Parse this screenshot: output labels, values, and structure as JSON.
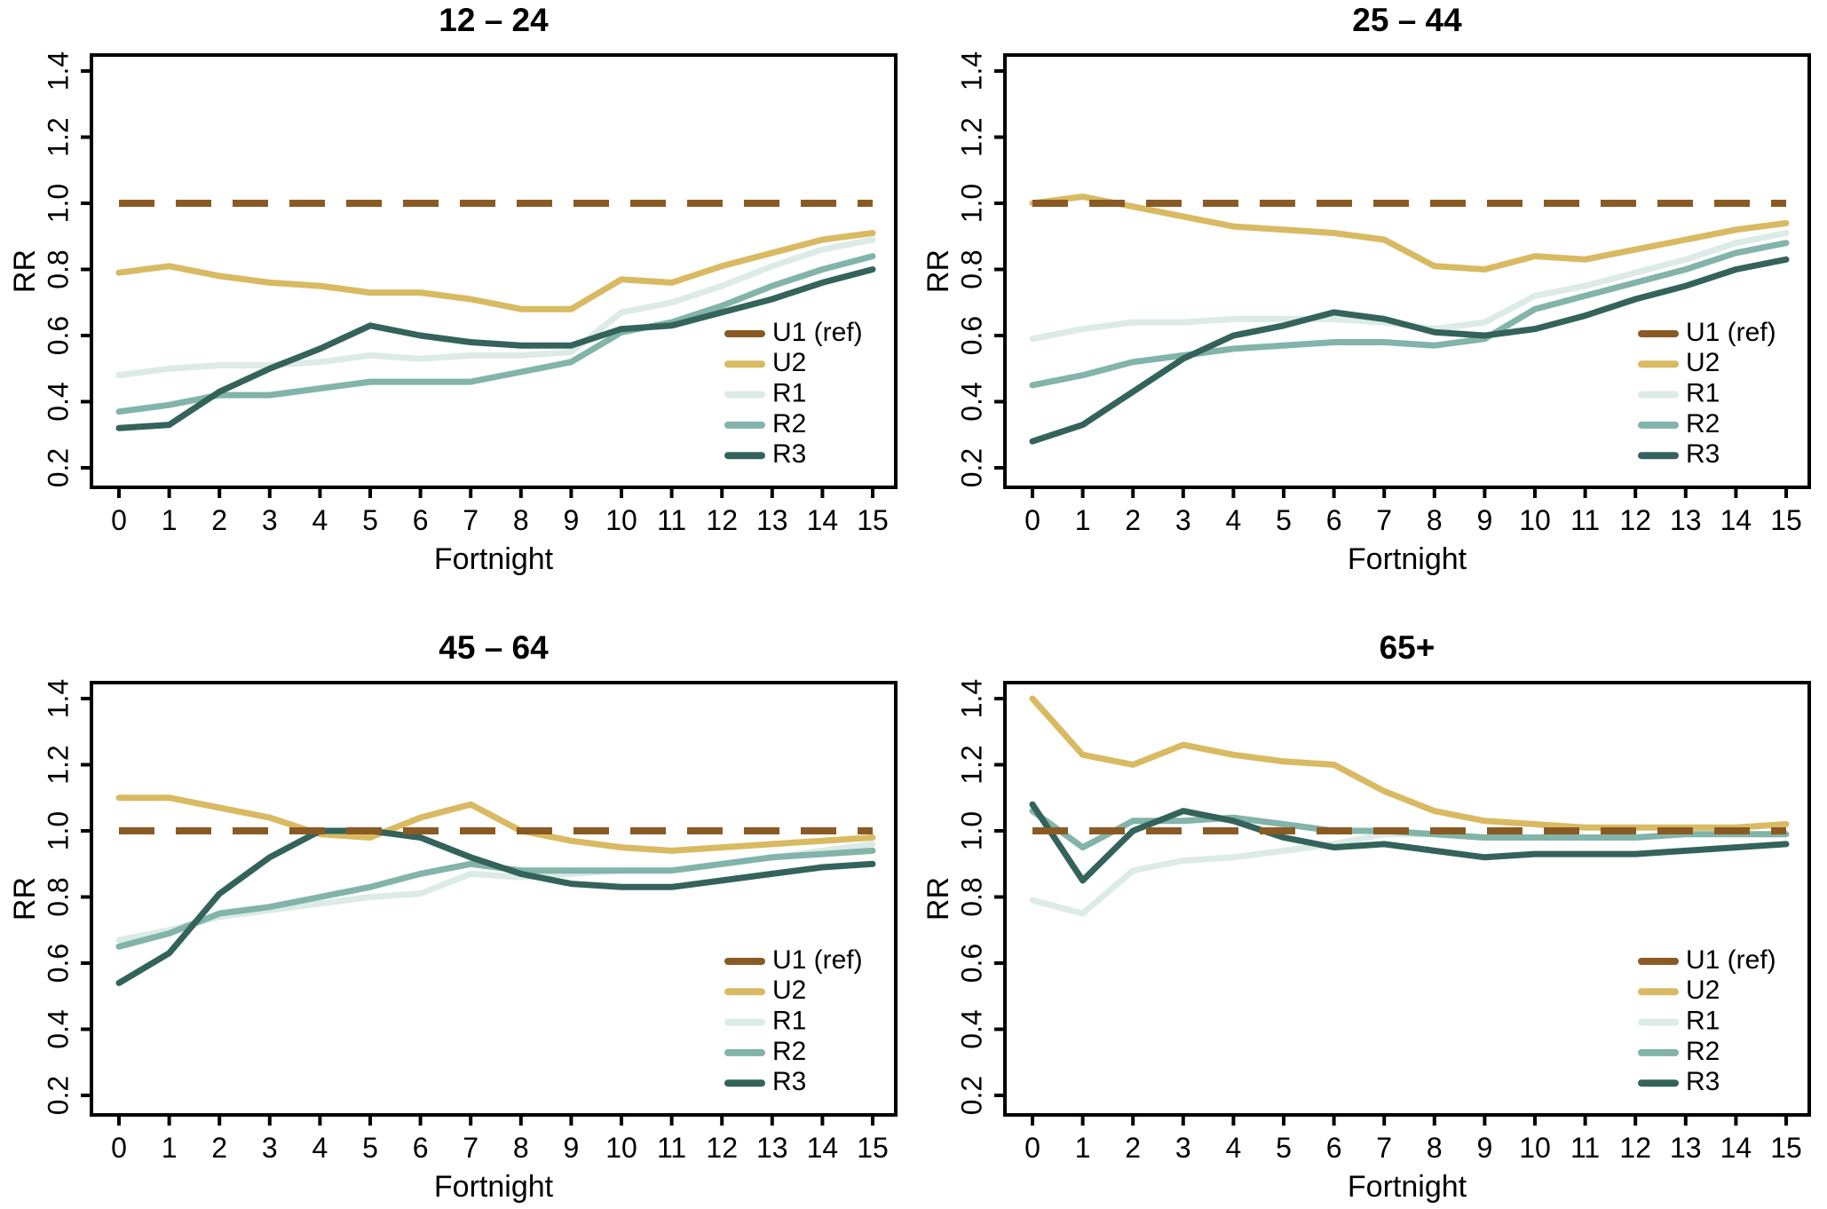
{
  "figure": {
    "background": "#ffffff",
    "text_color": "#000000"
  },
  "chart_data": [
    {
      "type": "line",
      "title": "12 – 24",
      "xlabel": "Fortnight",
      "ylabel": "RR",
      "x": [
        0,
        1,
        2,
        3,
        4,
        5,
        6,
        7,
        8,
        9,
        10,
        11,
        12,
        13,
        14,
        15
      ],
      "xticks": [
        0,
        1,
        2,
        3,
        4,
        5,
        6,
        7,
        8,
        9,
        10,
        11,
        12,
        13,
        14,
        15
      ],
      "yticks": [
        0.2,
        0.4,
        0.6,
        0.8,
        1.0,
        1.2,
        1.4
      ],
      "ylim": [
        0.2,
        1.4
      ],
      "grid": false,
      "legend_position": "lower right",
      "series": [
        {
          "name": "U1 (ref)",
          "color": "#8a5a24",
          "style": "dashed",
          "values": [
            1.0,
            1.0,
            1.0,
            1.0,
            1.0,
            1.0,
            1.0,
            1.0,
            1.0,
            1.0,
            1.0,
            1.0,
            1.0,
            1.0,
            1.0,
            1.0
          ]
        },
        {
          "name": "U2",
          "color": "#d9ba62",
          "style": "solid",
          "values": [
            0.79,
            0.81,
            0.78,
            0.76,
            0.75,
            0.73,
            0.73,
            0.71,
            0.68,
            0.68,
            0.77,
            0.76,
            0.81,
            0.85,
            0.89,
            0.91
          ]
        },
        {
          "name": "R1",
          "color": "#dcebe6",
          "style": "solid",
          "values": [
            0.48,
            0.5,
            0.51,
            0.51,
            0.52,
            0.54,
            0.53,
            0.54,
            0.54,
            0.55,
            0.67,
            0.7,
            0.75,
            0.81,
            0.86,
            0.89
          ]
        },
        {
          "name": "R2",
          "color": "#82b4a9",
          "style": "solid",
          "values": [
            0.37,
            0.39,
            0.42,
            0.42,
            0.44,
            0.46,
            0.46,
            0.46,
            0.49,
            0.52,
            0.61,
            0.64,
            0.69,
            0.75,
            0.8,
            0.84
          ]
        },
        {
          "name": "R3",
          "color": "#33635a",
          "style": "solid",
          "values": [
            0.32,
            0.33,
            0.43,
            0.5,
            0.56,
            0.63,
            0.6,
            0.58,
            0.57,
            0.57,
            0.62,
            0.63,
            0.67,
            0.71,
            0.76,
            0.8
          ]
        }
      ]
    },
    {
      "type": "line",
      "title": "25 – 44",
      "xlabel": "Fortnight",
      "ylabel": "RR",
      "x": [
        0,
        1,
        2,
        3,
        4,
        5,
        6,
        7,
        8,
        9,
        10,
        11,
        12,
        13,
        14,
        15
      ],
      "xticks": [
        0,
        1,
        2,
        3,
        4,
        5,
        6,
        7,
        8,
        9,
        10,
        11,
        12,
        13,
        14,
        15
      ],
      "yticks": [
        0.2,
        0.4,
        0.6,
        0.8,
        1.0,
        1.2,
        1.4
      ],
      "ylim": [
        0.2,
        1.4
      ],
      "grid": false,
      "legend_position": "lower right",
      "series": [
        {
          "name": "U1 (ref)",
          "color": "#8a5a24",
          "style": "dashed",
          "values": [
            1.0,
            1.0,
            1.0,
            1.0,
            1.0,
            1.0,
            1.0,
            1.0,
            1.0,
            1.0,
            1.0,
            1.0,
            1.0,
            1.0,
            1.0,
            1.0
          ]
        },
        {
          "name": "U2",
          "color": "#d9ba62",
          "style": "solid",
          "values": [
            1.0,
            1.02,
            0.99,
            0.96,
            0.93,
            0.92,
            0.91,
            0.89,
            0.81,
            0.8,
            0.84,
            0.83,
            0.86,
            0.89,
            0.92,
            0.94
          ]
        },
        {
          "name": "R1",
          "color": "#dcebe6",
          "style": "solid",
          "values": [
            0.59,
            0.62,
            0.64,
            0.64,
            0.65,
            0.65,
            0.65,
            0.64,
            0.62,
            0.64,
            0.72,
            0.75,
            0.79,
            0.83,
            0.88,
            0.91
          ]
        },
        {
          "name": "R2",
          "color": "#82b4a9",
          "style": "solid",
          "values": [
            0.45,
            0.48,
            0.52,
            0.54,
            0.56,
            0.57,
            0.58,
            0.58,
            0.57,
            0.59,
            0.68,
            0.72,
            0.76,
            0.8,
            0.85,
            0.88
          ]
        },
        {
          "name": "R3",
          "color": "#33635a",
          "style": "solid",
          "values": [
            0.28,
            0.33,
            0.43,
            0.53,
            0.6,
            0.63,
            0.67,
            0.65,
            0.61,
            0.6,
            0.62,
            0.66,
            0.71,
            0.75,
            0.8,
            0.83
          ]
        }
      ]
    },
    {
      "type": "line",
      "title": "45 – 64",
      "xlabel": "Fortnight",
      "ylabel": "RR",
      "x": [
        0,
        1,
        2,
        3,
        4,
        5,
        6,
        7,
        8,
        9,
        10,
        11,
        12,
        13,
        14,
        15
      ],
      "xticks": [
        0,
        1,
        2,
        3,
        4,
        5,
        6,
        7,
        8,
        9,
        10,
        11,
        12,
        13,
        14,
        15
      ],
      "yticks": [
        0.2,
        0.4,
        0.6,
        0.8,
        1.0,
        1.2,
        1.4
      ],
      "ylim": [
        0.2,
        1.4
      ],
      "grid": false,
      "legend_position": "lower right",
      "series": [
        {
          "name": "U1 (ref)",
          "color": "#8a5a24",
          "style": "dashed",
          "values": [
            1.0,
            1.0,
            1.0,
            1.0,
            1.0,
            1.0,
            1.0,
            1.0,
            1.0,
            1.0,
            1.0,
            1.0,
            1.0,
            1.0,
            1.0,
            1.0
          ]
        },
        {
          "name": "U2",
          "color": "#d9ba62",
          "style": "solid",
          "values": [
            1.1,
            1.1,
            1.07,
            1.04,
            0.99,
            0.98,
            1.04,
            1.08,
            1.0,
            0.97,
            0.95,
            0.94,
            0.95,
            0.96,
            0.97,
            0.98
          ]
        },
        {
          "name": "R1",
          "color": "#dcebe6",
          "style": "solid",
          "values": [
            0.67,
            0.7,
            0.74,
            0.76,
            0.78,
            0.8,
            0.81,
            0.87,
            0.86,
            0.87,
            0.88,
            0.88,
            0.9,
            0.92,
            0.94,
            0.96
          ]
        },
        {
          "name": "R2",
          "color": "#82b4a9",
          "style": "solid",
          "values": [
            0.65,
            0.69,
            0.75,
            0.77,
            0.8,
            0.83,
            0.87,
            0.9,
            0.88,
            0.88,
            0.88,
            0.88,
            0.9,
            0.92,
            0.93,
            0.94
          ]
        },
        {
          "name": "R3",
          "color": "#33635a",
          "style": "solid",
          "values": [
            0.54,
            0.63,
            0.81,
            0.92,
            1.0,
            1.0,
            0.98,
            0.92,
            0.87,
            0.84,
            0.83,
            0.83,
            0.85,
            0.87,
            0.89,
            0.9
          ]
        }
      ]
    },
    {
      "type": "line",
      "title": "65+",
      "xlabel": "Fortnight",
      "ylabel": "RR",
      "x": [
        0,
        1,
        2,
        3,
        4,
        5,
        6,
        7,
        8,
        9,
        10,
        11,
        12,
        13,
        14,
        15
      ],
      "xticks": [
        0,
        1,
        2,
        3,
        4,
        5,
        6,
        7,
        8,
        9,
        10,
        11,
        12,
        13,
        14,
        15
      ],
      "yticks": [
        0.2,
        0.4,
        0.6,
        0.8,
        1.0,
        1.2,
        1.4
      ],
      "ylim": [
        0.2,
        1.4
      ],
      "grid": false,
      "legend_position": "lower right",
      "series": [
        {
          "name": "U1 (ref)",
          "color": "#8a5a24",
          "style": "dashed",
          "values": [
            1.0,
            1.0,
            1.0,
            1.0,
            1.0,
            1.0,
            1.0,
            1.0,
            1.0,
            1.0,
            1.0,
            1.0,
            1.0,
            1.0,
            1.0,
            1.0
          ]
        },
        {
          "name": "U2",
          "color": "#d9ba62",
          "style": "solid",
          "values": [
            1.4,
            1.23,
            1.2,
            1.26,
            1.23,
            1.21,
            1.2,
            1.12,
            1.06,
            1.03,
            1.02,
            1.01,
            1.01,
            1.01,
            1.01,
            1.02
          ]
        },
        {
          "name": "R1",
          "color": "#dcebe6",
          "style": "solid",
          "values": [
            0.79,
            0.75,
            0.88,
            0.91,
            0.92,
            0.94,
            0.96,
            0.99,
            0.99,
            0.98,
            0.98,
            0.98,
            0.98,
            0.99,
            0.99,
            0.99
          ]
        },
        {
          "name": "R2",
          "color": "#82b4a9",
          "style": "solid",
          "values": [
            1.06,
            0.95,
            1.03,
            1.03,
            1.04,
            1.02,
            1.0,
            1.0,
            0.99,
            0.98,
            0.98,
            0.98,
            0.98,
            0.99,
            0.99,
            0.99
          ]
        },
        {
          "name": "R3",
          "color": "#33635a",
          "style": "solid",
          "values": [
            1.08,
            0.85,
            1.0,
            1.06,
            1.03,
            0.98,
            0.95,
            0.96,
            0.94,
            0.92,
            0.93,
            0.93,
            0.93,
            0.94,
            0.95,
            0.96
          ]
        }
      ]
    }
  ]
}
